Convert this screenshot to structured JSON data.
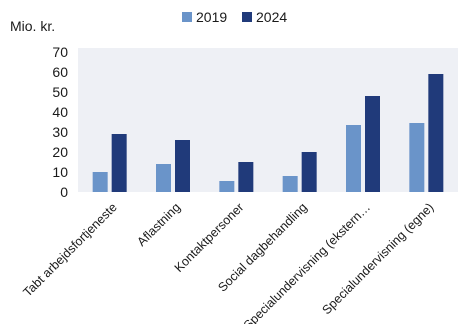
{
  "chart_data": {
    "type": "bar",
    "unit_label": "Mio. kr.",
    "categories": [
      "Tabt arbejdsfortjeneste",
      "Aflastning",
      "Kontaktpersoner",
      "Social dagbehandling",
      "Specialundervisning (ekstern…",
      "Specialundervisning (egne)"
    ],
    "series": [
      {
        "name": "2019",
        "color": "#6a94c9",
        "values": [
          10,
          14,
          5.5,
          8,
          33.5,
          34.5
        ]
      },
      {
        "name": "2024",
        "color": "#203a7a",
        "values": [
          29,
          26,
          15,
          20,
          48,
          59
        ]
      }
    ],
    "ylim": [
      0,
      70
    ],
    "yticks": [
      0,
      10,
      20,
      30,
      40,
      50,
      60,
      70
    ],
    "legend_position": "top-center",
    "grid": false
  }
}
